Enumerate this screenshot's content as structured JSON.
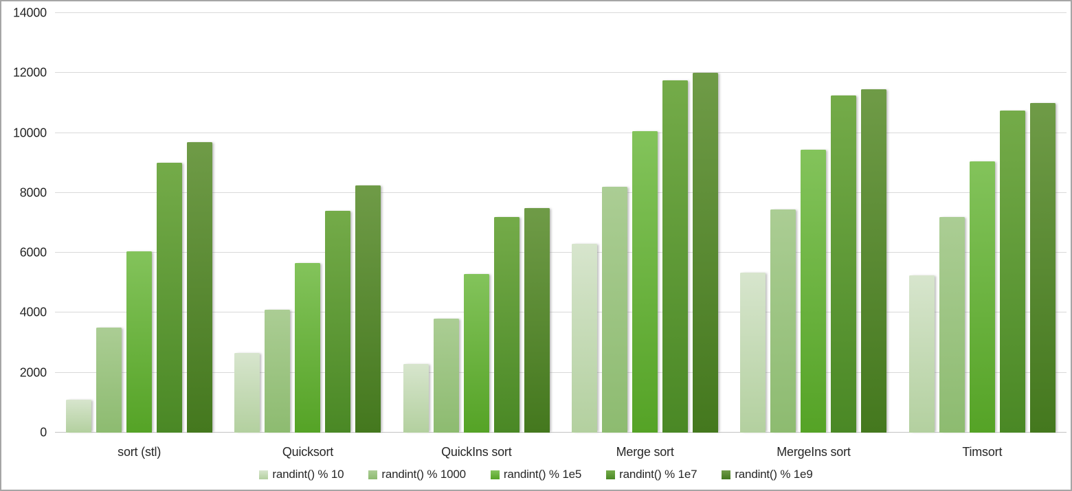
{
  "chart_data": {
    "type": "bar",
    "title": "",
    "xlabel": "",
    "ylabel": "",
    "grid": true,
    "legend_position": "bottom",
    "background_color": "#ffffff",
    "gridline_color": "#d9d9d9",
    "axis_line_color": "#c3c3c3",
    "text_color": "#262626",
    "categories": [
      "sort (stl)",
      "Quicksort",
      "QuickIns sort",
      "Merge sort",
      "MergeIns sort",
      "Timsort"
    ],
    "y_axis": {
      "min": 0,
      "max": 14000,
      "step": 2000,
      "ticks": [
        "0",
        "2000",
        "4000",
        "6000",
        "8000",
        "10000",
        "12000",
        "14000"
      ]
    },
    "series": [
      {
        "name": "randint() % 10",
        "legend_color": "#c3d9b1",
        "color_top": "#d7e5cd",
        "color_bottom": "#b3d09f",
        "values": [
          1100,
          2650,
          2300,
          6300,
          5350,
          5250
        ]
      },
      {
        "name": "randint() % 1000",
        "legend_color": "#9dc580",
        "color_top": "#abcd94",
        "color_bottom": "#8dbb70",
        "values": [
          3500,
          4100,
          3800,
          8200,
          7450,
          7200
        ]
      },
      {
        "name": "randint() % 1e5",
        "legend_color": "#61a82f",
        "color_top": "#83c35b",
        "color_bottom": "#55a326",
        "values": [
          6050,
          5650,
          5300,
          10050,
          9450,
          9050
        ]
      },
      {
        "name": "randint() % 1e7",
        "legend_color": "#4f8c2a",
        "color_top": "#74ab49",
        "color_bottom": "#4a8825",
        "values": [
          9000,
          7400,
          7200,
          11750,
          11250,
          10750
        ]
      },
      {
        "name": "randint() % 1e9",
        "legend_color": "#4a7c21",
        "color_top": "#6f9b47",
        "color_bottom": "#44781e",
        "values": [
          9700,
          8250,
          7500,
          12000,
          11450,
          11000
        ]
      }
    ]
  }
}
